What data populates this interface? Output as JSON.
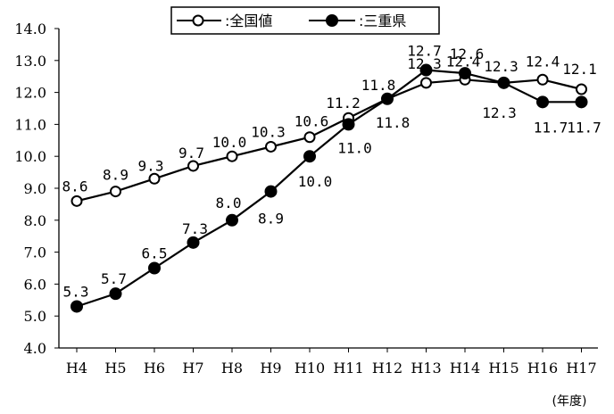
{
  "chart_data": {
    "type": "line",
    "title": "",
    "xlabel": "",
    "ylabel": "",
    "x_unit": "(年度)",
    "categories": [
      "H4",
      "H5",
      "H6",
      "H7",
      "H8",
      "H9",
      "H10",
      "H11",
      "H12",
      "H13",
      "H14",
      "H15",
      "H16",
      "H17"
    ],
    "ylim": [
      4.0,
      14.0
    ],
    "y_ticks": [
      "14.0",
      "13.0",
      "12.0",
      "11.0",
      "10.0",
      "9.0",
      "8.0",
      "7.0",
      "6.0",
      "5.0",
      "4.0"
    ],
    "grid": false,
    "legend_position": "top-center",
    "series": [
      {
        "name": ":全国値",
        "marker": "open-circle",
        "color": "#000000",
        "values": [
          8.6,
          8.9,
          9.3,
          9.7,
          10.0,
          10.3,
          10.6,
          11.2,
          11.8,
          12.3,
          12.4,
          12.3,
          12.4,
          12.1
        ],
        "labels": [
          "8.6",
          "8.9",
          "9.3",
          "9.7",
          "10.0",
          "10.3",
          "10.6",
          "11.2",
          "11.8",
          "12.3",
          "12.4",
          "12.3",
          "12.4",
          "12.1"
        ]
      },
      {
        "name": ":三重県",
        "marker": "filled-circle",
        "color": "#000000",
        "values": [
          5.3,
          5.7,
          6.5,
          7.3,
          8.0,
          8.9,
          10.0,
          11.0,
          11.8,
          12.7,
          12.6,
          12.3,
          11.7,
          11.7
        ],
        "labels": [
          "5.3",
          "5.7",
          "6.5",
          "7.3",
          "8.0",
          "8.9",
          "10.0",
          "11.0",
          "11.8",
          "12.7",
          "12.6",
          "12.3",
          "11.7",
          "11.7"
        ]
      }
    ]
  }
}
